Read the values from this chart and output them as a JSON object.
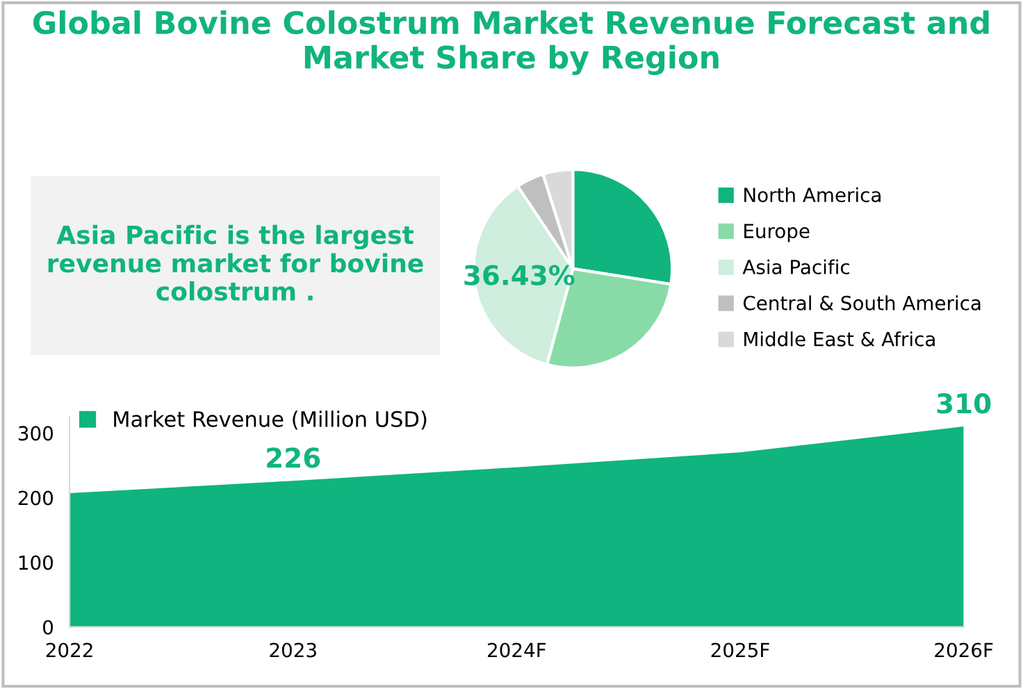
{
  "chart_data": [
    {
      "type": "other",
      "title": "Global Bovine Colostrum Market Revenue Forecast and Market Share by Region",
      "annotations": [
        "Asia Pacific is the largest revenue market for bovine colostrum ."
      ]
    },
    {
      "type": "pie",
      "categories": [
        "North America",
        "Europe",
        "Asia Pacific",
        "Central & South America",
        "Middle East & Africa"
      ],
      "values": [
        27.5,
        26.7,
        36.43,
        4.5,
        4.87
      ],
      "colors": [
        "#10b47e",
        "#88dba7",
        "#cfeedd",
        "#bfbfbf",
        "#d9d9d9"
      ],
      "value_labels": [
        null,
        null,
        "36.43%",
        null,
        null
      ],
      "legend": "right"
    },
    {
      "type": "area",
      "categories": [
        "2022",
        "2023",
        "2024F",
        "2025F",
        "2026F"
      ],
      "series": [
        {
          "name": "Market Revenue (Million USD)",
          "color": "#10b47e",
          "values": [
            207,
            226,
            247,
            270,
            310
          ],
          "value_labels": [
            null,
            "226",
            null,
            null,
            "310"
          ]
        }
      ],
      "ylim": [
        0,
        325
      ],
      "yticks": [
        0,
        100,
        200,
        300
      ],
      "legend": "top left"
    }
  ]
}
